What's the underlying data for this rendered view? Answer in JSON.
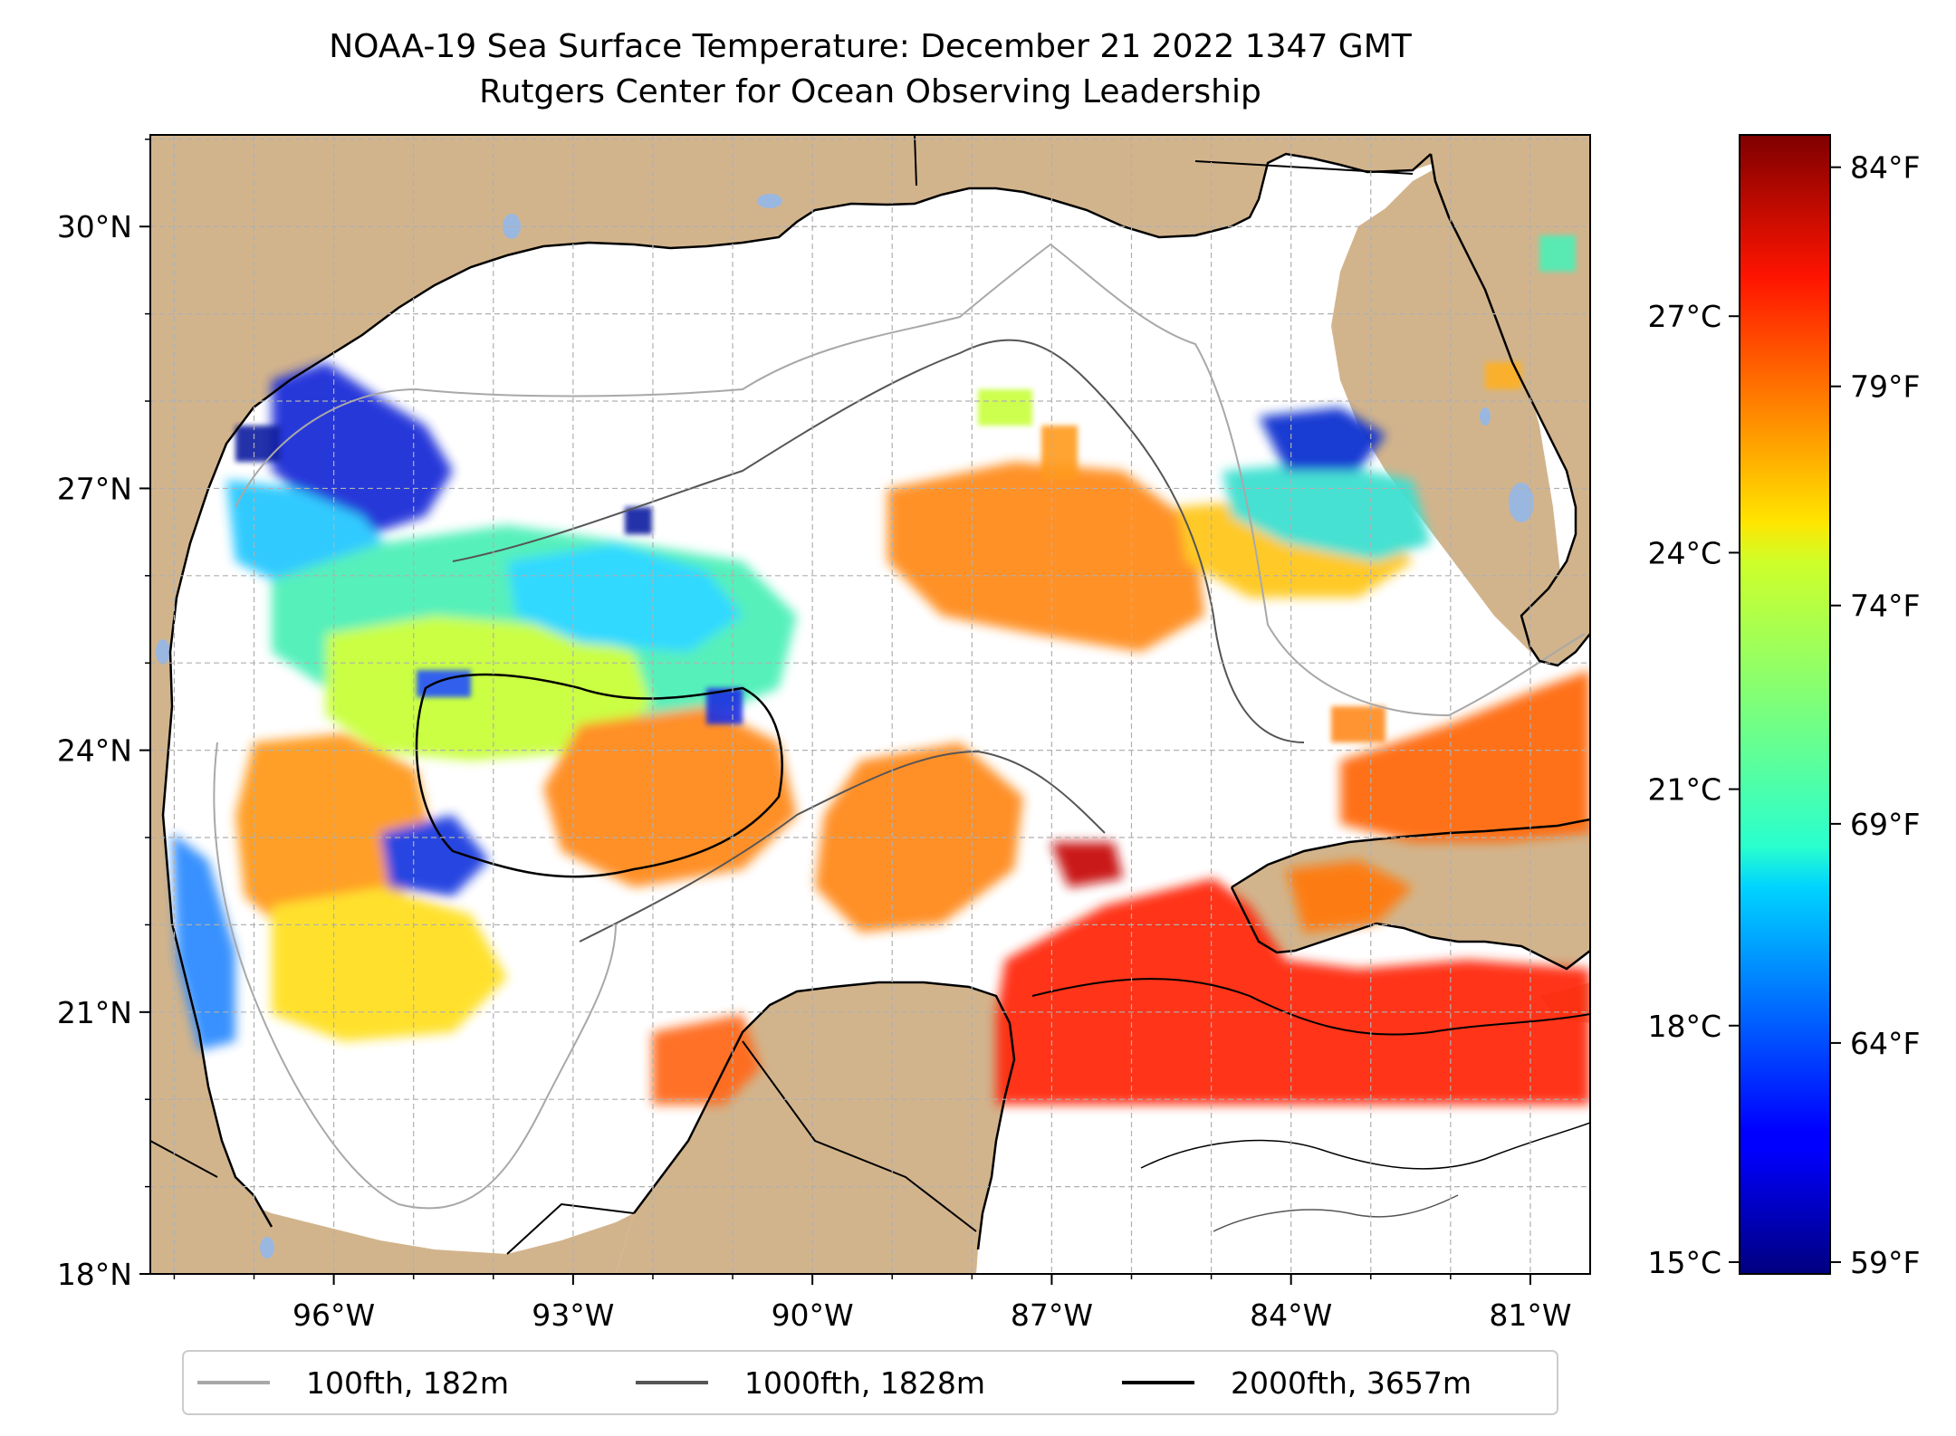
{
  "title": {
    "line1": "NOAA-19 Sea Surface Temperature: December 21 2022 1347 GMT",
    "line2": "Rutgers Center for Ocean Observing Leadership"
  },
  "axes": {
    "lat_labels": [
      "30°N",
      "27°N",
      "24°N",
      "21°N",
      "18°N"
    ],
    "lon_labels": [
      "96°W",
      "93°W",
      "90°W",
      "87°W",
      "84°W",
      "81°W"
    ],
    "lat_range": [
      18,
      31.05
    ],
    "lon_range": [
      -98.3,
      -80.25
    ],
    "lat_ticks": [
      30,
      27,
      24,
      21,
      18
    ],
    "lon_ticks": [
      -96,
      -93,
      -90,
      -87,
      -84,
      -81
    ]
  },
  "colorbar": {
    "colormap": "jet",
    "range_c": [
      14.85,
      29.3
    ],
    "celsius_ticks": [
      {
        "value": 27,
        "label": "27°C"
      },
      {
        "value": 24,
        "label": "24°C"
      },
      {
        "value": 21,
        "label": "21°C"
      },
      {
        "value": 18,
        "label": "18°C"
      },
      {
        "value": 15,
        "label": "15°C"
      }
    ],
    "fahrenheit_ticks": [
      {
        "value_c": 28.89,
        "label": "84°F"
      },
      {
        "value_c": 26.11,
        "label": "79°F"
      },
      {
        "value_c": 23.33,
        "label": "74°F"
      },
      {
        "value_c": 20.56,
        "label": "69°F"
      },
      {
        "value_c": 17.78,
        "label": "64°F"
      },
      {
        "value_c": 15.0,
        "label": "59°F"
      }
    ]
  },
  "legend": {
    "items": [
      {
        "label": "100fth, 182m",
        "color": "#a8a8a8"
      },
      {
        "label": "1000fth, 1828m",
        "color": "#555555"
      },
      {
        "label": "2000fth, 3657m",
        "color": "#000000"
      }
    ]
  },
  "colors": {
    "land": "#d2b48c",
    "lakes": "#9ab7e0",
    "ocean_no_data": "#ffffff",
    "gridline": "#b0b0b0"
  }
}
